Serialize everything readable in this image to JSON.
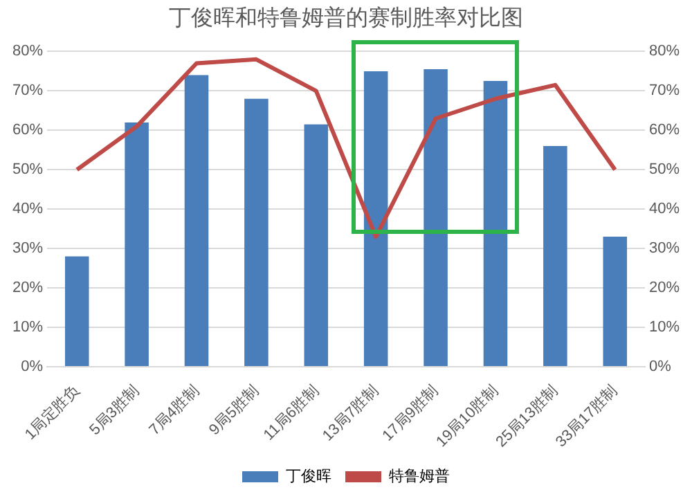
{
  "chart_data": {
    "type": "bar",
    "title": "丁俊晖和特鲁姆普的赛制胜率对比图",
    "categories": [
      "1局定胜负",
      "5局3胜制",
      "7局4胜制",
      "9局5胜制",
      "11局6胜制",
      "13局7胜制",
      "17局9胜制",
      "19局10胜制",
      "25局13胜制",
      "33局17胜制"
    ],
    "series": [
      {
        "name": "丁俊晖",
        "color": "#4a7ebb",
        "values": [
          28,
          62,
          74,
          68,
          61.5,
          75,
          75.5,
          72.5,
          56,
          33
        ]
      },
      {
        "name": "特鲁姆普",
        "type": "line",
        "axis": "y2",
        "color": "#be4b48",
        "values": [
          50,
          61,
          77,
          78,
          70,
          33,
          63,
          68,
          71.5,
          50
        ]
      }
    ],
    "ylim": [
      0,
      80
    ],
    "yticks": [
      {
        "value": 0,
        "label": "0%"
      },
      {
        "value": 10,
        "label": "10%"
      },
      {
        "value": 20,
        "label": "20%"
      },
      {
        "value": 30,
        "label": "30%"
      },
      {
        "value": 40,
        "label": "40%"
      },
      {
        "value": 50,
        "label": "50%"
      },
      {
        "value": 60,
        "label": "60%"
      },
      {
        "value": 70,
        "label": "70%"
      },
      {
        "value": 80,
        "label": "80%"
      }
    ],
    "y2lim": [
      0,
      80
    ],
    "y2ticks": [
      {
        "value": 0,
        "label": "0%"
      },
      {
        "value": 10,
        "label": "10%"
      },
      {
        "value": 20,
        "label": "20%"
      },
      {
        "value": 30,
        "label": "30%"
      },
      {
        "value": 40,
        "label": "40%"
      },
      {
        "value": 50,
        "label": "50%"
      },
      {
        "value": 60,
        "label": "60%"
      },
      {
        "value": 70,
        "label": "70%"
      },
      {
        "value": 80,
        "label": "80%"
      }
    ],
    "grid": "y",
    "legend": "bottom",
    "marker": "none",
    "line_style": "solid"
  }
}
